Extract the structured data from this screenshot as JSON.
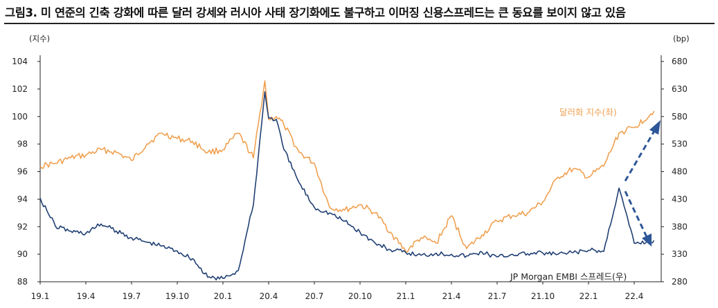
{
  "title": "그림3. 미 연준의 긴축 강화에 따른 달러 강세와 러시아 사태 장기화에도 불구하고 이머징 신용스프레드는 큰 동요를 보이지 않고 있음",
  "colors": {
    "dollar": "#F0A050",
    "embi": "#1F3F73",
    "arrow": "#2E5797"
  },
  "chart_data": {
    "type": "line",
    "title": "",
    "xlabel": "",
    "left_axis_unit": "(지수)",
    "right_axis_unit": "(bp)",
    "x_ticks": [
      "19.1",
      "19.4",
      "19.7",
      "19.10",
      "20.1",
      "20.4",
      "20.7",
      "20.10",
      "21.1",
      "21.4",
      "21.7",
      "21.10",
      "22.1",
      "22.4"
    ],
    "left_ylim": [
      88,
      104
    ],
    "left_ticks": [
      88,
      90,
      92,
      94,
      96,
      98,
      100,
      102,
      104
    ],
    "right_ylim": [
      280,
      680
    ],
    "right_ticks": [
      280,
      330,
      380,
      430,
      480,
      530,
      580,
      630,
      680
    ],
    "grid": false,
    "series": [
      {
        "name": "달러화 지수(좌)",
        "axis": "left",
        "x": [
          "19.1",
          "19.2",
          "19.3",
          "19.4",
          "19.5",
          "19.6",
          "19.7",
          "19.8",
          "19.9",
          "19.10",
          "19.11",
          "19.12",
          "20.1",
          "20.2",
          "20.3a",
          "20.3b",
          "20.3c",
          "20.4",
          "20.5",
          "20.6",
          "20.7",
          "20.8",
          "20.9",
          "20.10",
          "20.11",
          "20.12",
          "21.1",
          "21.2",
          "21.3",
          "21.4",
          "21.5",
          "21.6",
          "21.7",
          "21.8",
          "21.9",
          "21.10",
          "21.11",
          "21.12",
          "22.1",
          "22.2",
          "22.3",
          "22.4",
          "22.5"
        ],
        "values": [
          96.4,
          96.6,
          97.0,
          97.2,
          97.6,
          97.4,
          96.8,
          98.0,
          98.8,
          98.4,
          98.2,
          97.4,
          97.6,
          98.8,
          97.0,
          102.6,
          99.8,
          100.0,
          99.4,
          97.4,
          96.6,
          93.4,
          93.2,
          93.6,
          93.0,
          91.6,
          90.2,
          91.2,
          90.8,
          92.8,
          90.4,
          91.4,
          92.4,
          92.8,
          93.0,
          93.8,
          95.6,
          96.2,
          95.6,
          96.4,
          98.8,
          99.2,
          100.4
        ]
      },
      {
        "name": "JP Morgan EMBI 스프레드(우)",
        "axis": "right",
        "x": [
          "19.1",
          "19.2",
          "19.3",
          "19.4",
          "19.5",
          "19.6",
          "19.7",
          "19.8",
          "19.9",
          "19.10",
          "19.11",
          "19.12",
          "20.1",
          "20.2",
          "20.3a",
          "20.3b",
          "20.3c",
          "20.4",
          "20.5",
          "20.6",
          "20.7",
          "20.8",
          "20.9",
          "20.10",
          "20.11",
          "20.12",
          "21.1",
          "21.2",
          "21.3",
          "21.4",
          "21.5",
          "21.6",
          "21.7",
          "21.8",
          "21.9",
          "21.10",
          "21.11",
          "21.12",
          "22.1",
          "22.2",
          "22.3",
          "22.4",
          "22.5"
        ],
        "values": [
          432,
          381,
          372,
          368,
          385,
          372,
          360,
          352,
          345,
          336,
          322,
          288,
          286,
          300,
          420,
          625,
          577,
          575,
          520,
          460,
          415,
          405,
          390,
          370,
          350,
          338,
          333,
          328,
          332,
          330,
          327,
          334,
          325,
          330,
          331,
          332,
          330,
          333,
          337,
          335,
          450,
          350,
          355
        ]
      }
    ],
    "annotations": [
      "달러화 지수(좌)",
      "JP Morgan EMBI 스프레드(우)"
    ]
  }
}
